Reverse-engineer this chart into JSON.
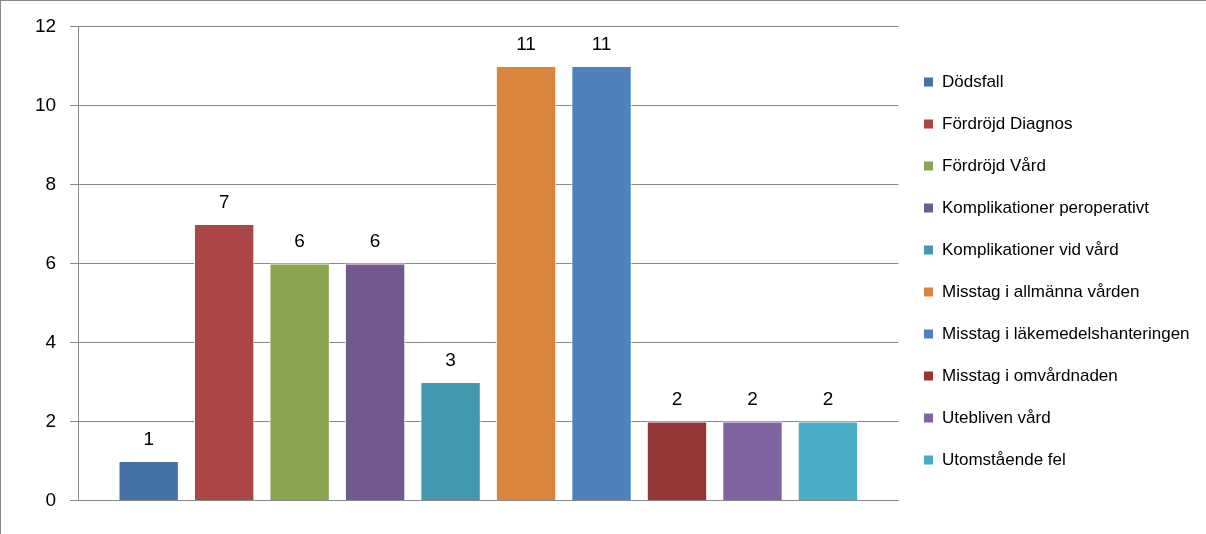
{
  "chart_data": {
    "type": "bar",
    "categories": [
      null
    ],
    "series": [
      {
        "name": "Dödsfall",
        "color": "#4572a7",
        "values": [
          1
        ]
      },
      {
        "name": "Fördröjd Diagnos",
        "color": "#aa4643",
        "values": [
          7
        ]
      },
      {
        "name": "Fördröjd Vård",
        "color": "#89a54e",
        "values": [
          6
        ]
      },
      {
        "name": "Komplikationer peroperativt",
        "color": "#71588f",
        "values": [
          6
        ]
      },
      {
        "name": "Komplikationer vid vård",
        "color": "#4198af",
        "values": [
          3
        ]
      },
      {
        "name": "Misstag i allmänna vården",
        "color": "#db843d",
        "values": [
          11
        ]
      },
      {
        "name": "Misstag i läkemedelshanteringen",
        "color": "#4f81bd",
        "values": [
          11
        ]
      },
      {
        "name": "Misstag i omvårdnaden",
        "color": "#943634",
        "values": [
          2
        ]
      },
      {
        "name": "Utebliven vård",
        "color": "#8064a2",
        "values": [
          2
        ]
      },
      {
        "name": "Utomstående fel",
        "color": "#4bacc6",
        "values": [
          2
        ]
      }
    ],
    "ylim": [
      0,
      12
    ],
    "yticks": [
      0,
      2,
      4,
      6,
      8,
      10,
      12
    ],
    "grid": "y",
    "legend": "right",
    "data_labels": true
  }
}
